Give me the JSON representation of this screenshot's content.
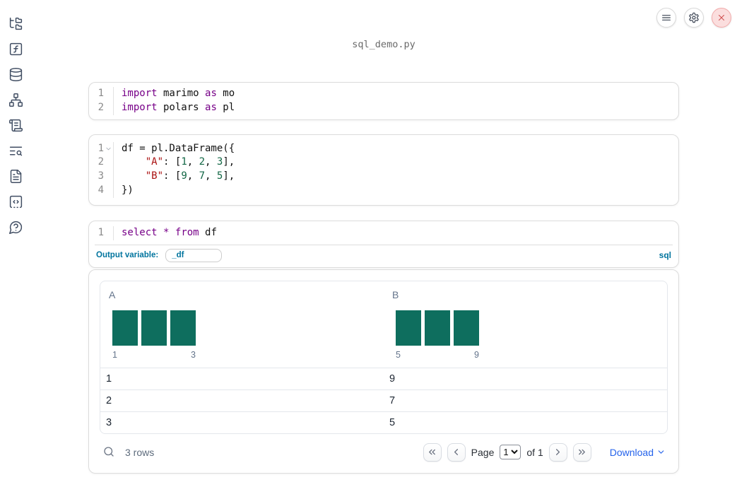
{
  "window": {
    "title": "sql_demo.py"
  },
  "topbar": {
    "buttons": [
      {
        "name": "menu",
        "icon": "menu"
      },
      {
        "name": "settings",
        "icon": "gear"
      },
      {
        "name": "close",
        "icon": "close-x"
      }
    ]
  },
  "sidebar": {
    "icons": [
      "folder-tree",
      "function-square",
      "database",
      "network",
      "scroll-text",
      "text-search",
      "file-text",
      "code-square-dashed",
      "help-bubble"
    ]
  },
  "cells": [
    {
      "type": "code",
      "lines": [
        {
          "n": "1",
          "tokens": [
            {
              "c": "kw",
              "t": "import"
            },
            {
              "c": "pl",
              "t": " marimo "
            },
            {
              "c": "kw",
              "t": "as"
            },
            {
              "c": "pl",
              "t": " mo"
            }
          ]
        },
        {
          "n": "2",
          "tokens": [
            {
              "c": "kw",
              "t": "import"
            },
            {
              "c": "pl",
              "t": " polars "
            },
            {
              "c": "kw",
              "t": "as"
            },
            {
              "c": "pl",
              "t": " pl"
            }
          ]
        }
      ]
    },
    {
      "type": "code",
      "lines": [
        {
          "n": "1",
          "fold": true,
          "tokens": [
            {
              "c": "pl",
              "t": "df = pl.DataFrame({"
            }
          ]
        },
        {
          "n": "2",
          "tokens": [
            {
              "c": "pl",
              "t": "    "
            },
            {
              "c": "str",
              "t": "\"A\""
            },
            {
              "c": "pl",
              "t": ": ["
            },
            {
              "c": "num",
              "t": "1"
            },
            {
              "c": "pl",
              "t": ", "
            },
            {
              "c": "num",
              "t": "2"
            },
            {
              "c": "pl",
              "t": ", "
            },
            {
              "c": "num",
              "t": "3"
            },
            {
              "c": "pl",
              "t": "],"
            }
          ]
        },
        {
          "n": "3",
          "tokens": [
            {
              "c": "pl",
              "t": "    "
            },
            {
              "c": "str",
              "t": "\"B\""
            },
            {
              "c": "pl",
              "t": ": ["
            },
            {
              "c": "num",
              "t": "9"
            },
            {
              "c": "pl",
              "t": ", "
            },
            {
              "c": "num",
              "t": "7"
            },
            {
              "c": "pl",
              "t": ", "
            },
            {
              "c": "num",
              "t": "5"
            },
            {
              "c": "pl",
              "t": "],"
            }
          ]
        },
        {
          "n": "4",
          "tokens": [
            {
              "c": "pl",
              "t": "})"
            }
          ]
        }
      ]
    },
    {
      "type": "sql",
      "lines": [
        {
          "n": "1",
          "tokens": [
            {
              "c": "kw",
              "t": "select"
            },
            {
              "c": "pl",
              "t": " "
            },
            {
              "c": "kw",
              "t": "*"
            },
            {
              "c": "pl",
              "t": " "
            },
            {
              "c": "kw",
              "t": "from"
            },
            {
              "c": "pl",
              "t": " df"
            }
          ]
        }
      ],
      "footer": {
        "label": "Output variable:",
        "value": "_df",
        "language": "sql"
      }
    }
  ],
  "table": {
    "columns": [
      {
        "header": "A",
        "hist_ticks": [
          "1",
          "3"
        ]
      },
      {
        "header": "B",
        "hist_ticks": [
          "5",
          "9"
        ]
      }
    ],
    "rows": [
      [
        "1",
        "9"
      ],
      [
        "2",
        "7"
      ],
      [
        "3",
        "5"
      ]
    ],
    "footer": {
      "row_count": "3 rows",
      "page_label": "Page",
      "page_value": "1",
      "of_label": "of 1",
      "download_label": "Download"
    }
  },
  "chart_data": [
    {
      "type": "bar",
      "title": "column A mini-histogram",
      "categories": [
        "1",
        "2",
        "3"
      ],
      "values": [
        1,
        1,
        1
      ],
      "x_ticks_shown": [
        "1",
        "3"
      ]
    },
    {
      "type": "bar",
      "title": "column B mini-histogram",
      "categories": [
        "5",
        "7",
        "9"
      ],
      "values": [
        1,
        1,
        1
      ],
      "x_ticks_shown": [
        "5",
        "9"
      ]
    }
  ],
  "colors": {
    "keyword": "#770088",
    "string": "#aa1111",
    "number": "#116644",
    "histogram_bar": "#0e6e5e",
    "accent_blue": "#00749e",
    "link_blue": "#2563eb",
    "sidebar_icon": "#414e63",
    "close_red": "#cf5050"
  }
}
